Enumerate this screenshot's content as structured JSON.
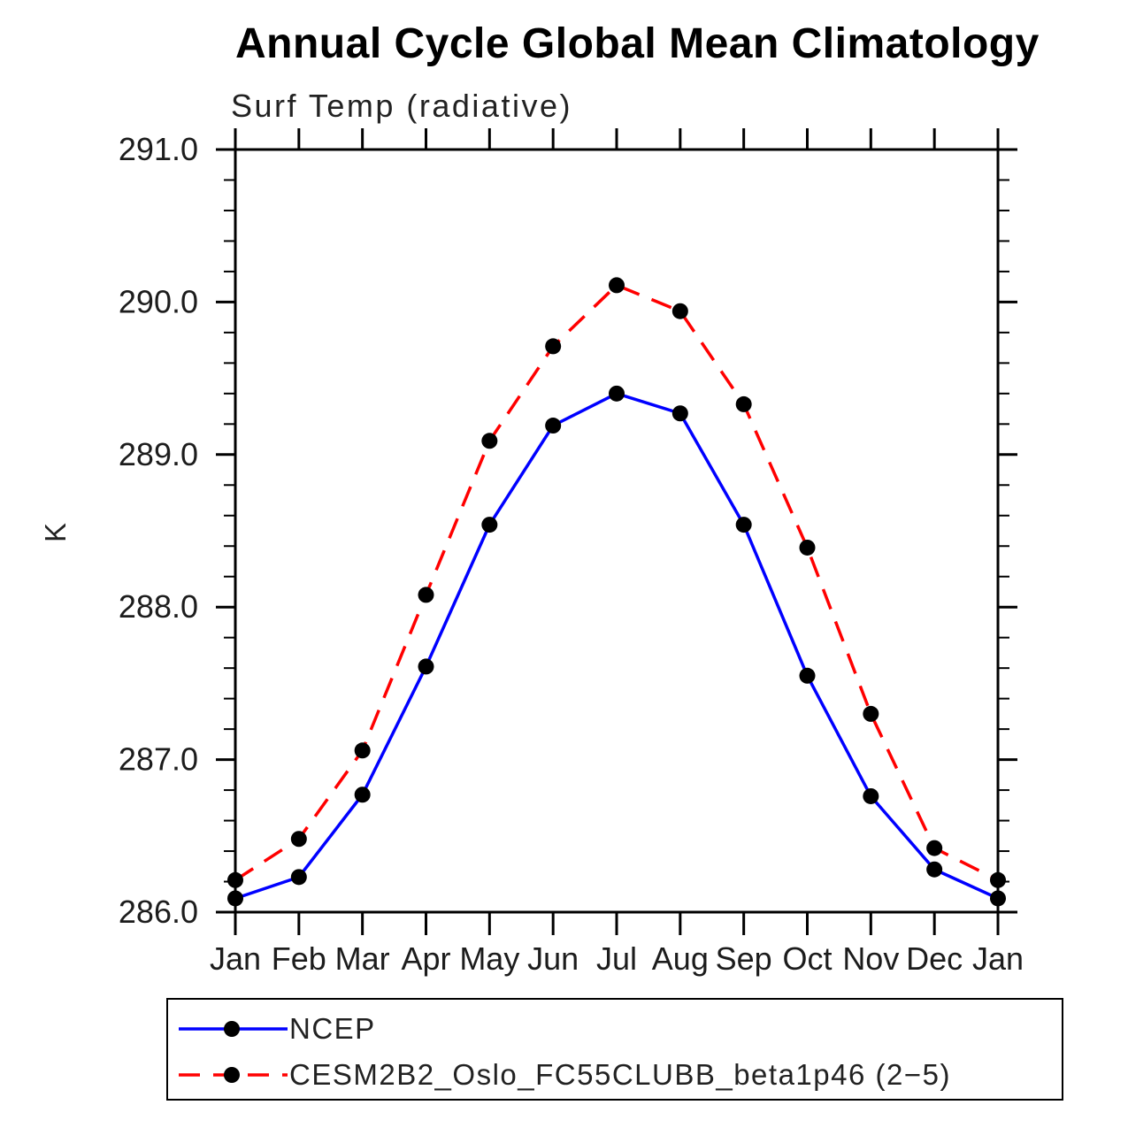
{
  "title": "Annual Cycle Global Mean Climatology",
  "subtitle": "Surf Temp (radiative)",
  "chart_data": {
    "type": "line",
    "title": "Annual Cycle Global Mean Climatology",
    "subtitle": "Surf Temp (radiative)",
    "xlabel": "",
    "ylabel": "K",
    "ylim": [
      286.0,
      291.0
    ],
    "ytick_step": 1.0,
    "ytick_minor_step": 0.2,
    "ytick_labels": [
      "286.0",
      "287.0",
      "288.0",
      "289.0",
      "290.0",
      "291.0"
    ],
    "categories": [
      "Jan",
      "Feb",
      "Mar",
      "Apr",
      "May",
      "Jun",
      "Jul",
      "Aug",
      "Sep",
      "Oct",
      "Nov",
      "Dec",
      "Jan"
    ],
    "grid": false,
    "legend_position": "bottom-left-box",
    "marker": "filled-circle",
    "marker_color": "#000000",
    "series": [
      {
        "id": "ncep",
        "name": "NCEP",
        "color": "#0000ff",
        "style": "solid",
        "values": [
          286.09,
          286.23,
          286.77,
          287.61,
          288.54,
          289.19,
          289.4,
          289.27,
          288.54,
          287.55,
          286.76,
          286.28,
          286.09
        ]
      },
      {
        "id": "cesm",
        "name": "CESM2B2_Oslo_FC55CLUBB_beta1p46 (2−5)",
        "color": "#ff0000",
        "style": "dashed",
        "values": [
          286.21,
          286.48,
          287.06,
          288.08,
          289.09,
          289.71,
          290.11,
          289.94,
          289.33,
          288.39,
          287.3,
          286.42,
          286.21
        ]
      }
    ],
    "colors": {
      "axis": "#000000",
      "ncep_line": "#0000ff",
      "cesm_line": "#ff0000",
      "marker": "#000000"
    }
  }
}
